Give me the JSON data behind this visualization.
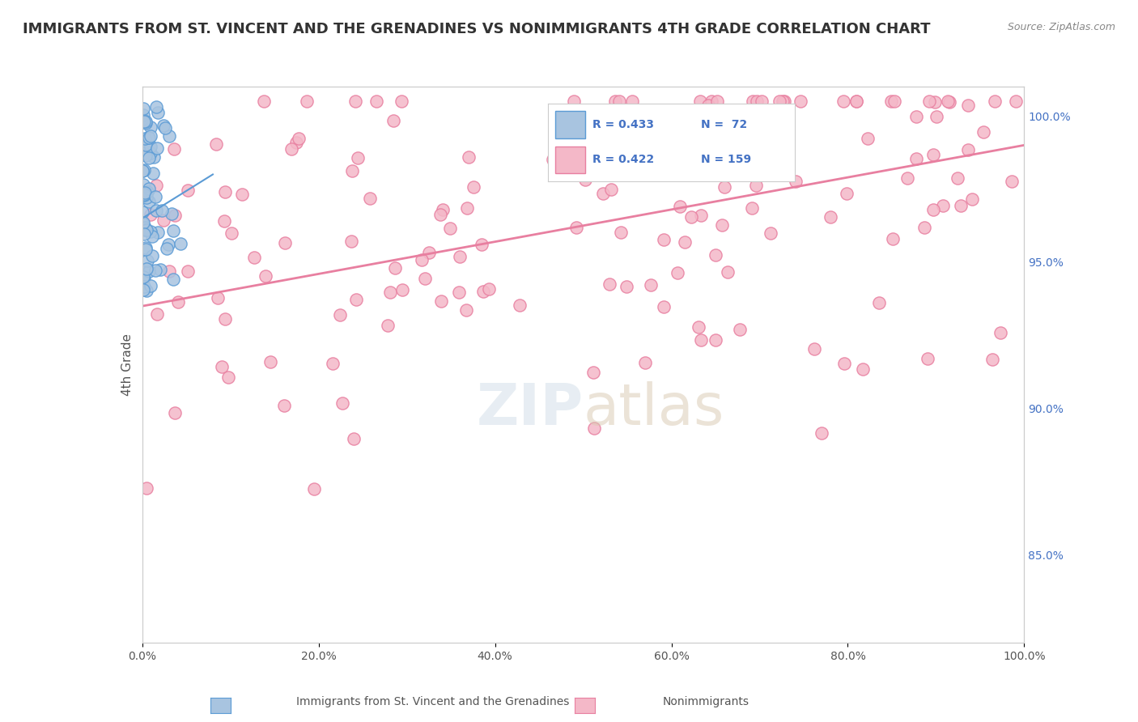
{
  "title": "IMMIGRANTS FROM ST. VINCENT AND THE GRENADINES VS NONIMMIGRANTS 4TH GRADE CORRELATION CHART",
  "source": "Source: ZipAtlas.com",
  "ylabel": "4th Grade",
  "xlabel": "",
  "blue_R": 0.433,
  "blue_N": 72,
  "pink_R": 0.422,
  "pink_N": 159,
  "blue_color": "#a8c4e0",
  "blue_edge": "#5b9bd5",
  "pink_color": "#f4b8c8",
  "pink_edge": "#e87fa0",
  "trend_blue": "#5b9bd5",
  "trend_pink": "#e87fa0",
  "right_yticks": [
    85.0,
    90.0,
    95.0,
    100.0
  ],
  "xlim": [
    0.0,
    1.0
  ],
  "ylim": [
    0.82,
    1.01
  ],
  "watermark": "ZIPatlas",
  "background": "#ffffff",
  "grid_color": "#cccccc"
}
